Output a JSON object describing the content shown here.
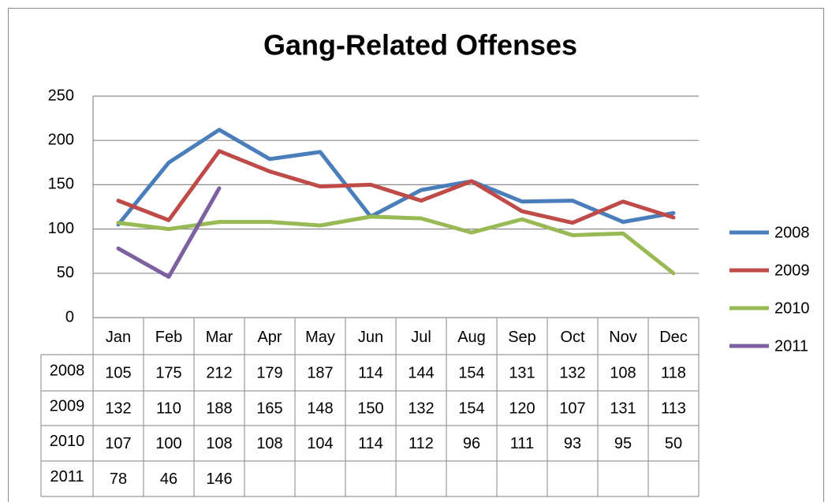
{
  "chart_data": {
    "type": "line",
    "title": "Gang-Related Offenses",
    "categories": [
      "Jan",
      "Feb",
      "Mar",
      "Apr",
      "May",
      "Jun",
      "Jul",
      "Aug",
      "Sep",
      "Oct",
      "Nov",
      "Dec"
    ],
    "series": [
      {
        "name": "2008",
        "color": "#4a7ebb",
        "values": [
          105,
          175,
          212,
          179,
          187,
          114,
          144,
          154,
          131,
          132,
          108,
          118
        ]
      },
      {
        "name": "2009",
        "color": "#be4b48",
        "values": [
          132,
          110,
          188,
          165,
          148,
          150,
          132,
          154,
          120,
          107,
          131,
          113
        ]
      },
      {
        "name": "2010",
        "color": "#98b954",
        "values": [
          107,
          100,
          108,
          108,
          104,
          114,
          112,
          96,
          111,
          93,
          95,
          50
        ]
      },
      {
        "name": "2011",
        "color": "#7d60a0",
        "values": [
          78,
          46,
          146,
          null,
          null,
          null,
          null,
          null,
          null,
          null,
          null,
          null
        ]
      }
    ],
    "ylim": [
      0,
      250
    ],
    "yticks": [
      0,
      50,
      100,
      150,
      200,
      250
    ],
    "grid": true,
    "legend": "right",
    "data_table": true
  }
}
